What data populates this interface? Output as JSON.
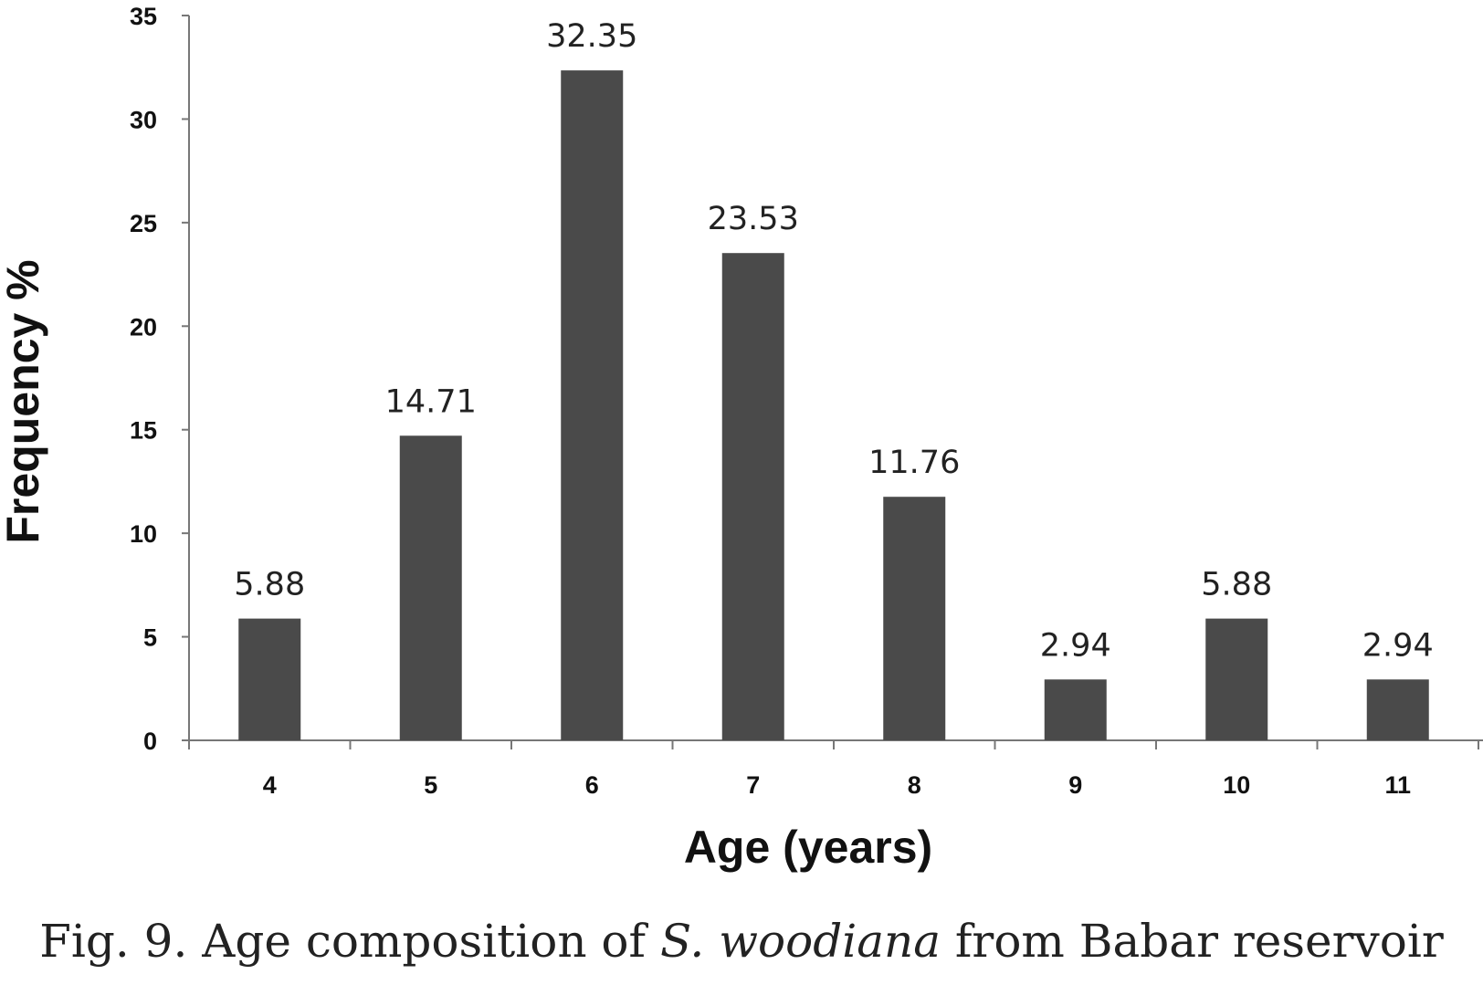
{
  "chart_data": {
    "type": "bar",
    "categories": [
      "4",
      "5",
      "6",
      "7",
      "8",
      "9",
      "10",
      "11"
    ],
    "values": [
      5.88,
      14.71,
      32.35,
      23.53,
      11.76,
      2.94,
      5.88,
      2.94
    ],
    "data_labels": [
      "5.88",
      "14.71",
      "32.35",
      "23.53",
      "11.76",
      "2.94",
      "5.88",
      "2.94"
    ],
    "xlabel": "Age (years)",
    "ylabel": "Frequency %",
    "ylim": [
      0,
      35
    ],
    "yticks": [
      "0",
      "5",
      "10",
      "15",
      "20",
      "25",
      "30",
      "35"
    ],
    "grid": false,
    "bar_color": "#4a4a4a"
  },
  "caption": {
    "prefix": "Fig. 9. Age composition of ",
    "species": "S. woodiana",
    "suffix": " from Babar reservoir"
  }
}
